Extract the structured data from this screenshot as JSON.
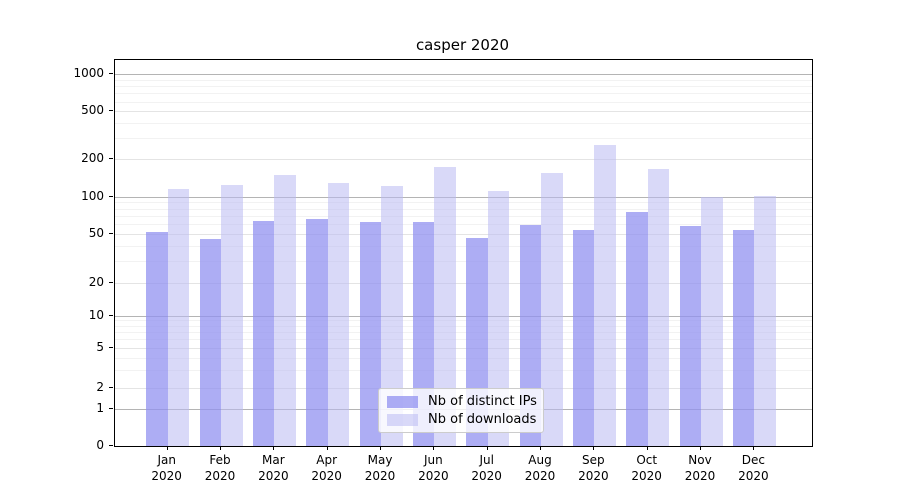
{
  "chart_data": {
    "type": "bar",
    "title": "casper 2020",
    "categories": [
      "Jan",
      "Feb",
      "Mar",
      "Apr",
      "May",
      "Jun",
      "Jul",
      "Aug",
      "Sep",
      "Oct",
      "Nov",
      "Dec"
    ],
    "year_label": "2020",
    "series": [
      {
        "name": "Nb of distinct IPs",
        "color": "rgba(145,145,240,0.75)",
        "color_hex_approx": "#a9a9f4",
        "values": [
          52,
          45,
          64,
          66,
          62,
          62,
          46,
          59,
          54,
          75,
          58,
          54
        ]
      },
      {
        "name": "Nb of downloads",
        "color": "rgba(185,185,243,0.55)",
        "color_hex_approx": "#d8d8f8",
        "values": [
          115,
          125,
          150,
          130,
          122,
          175,
          112,
          155,
          265,
          166,
          100,
          101
        ]
      }
    ],
    "yscale": "symlog",
    "ylim": [
      0,
      1300
    ],
    "y_ticks": [
      0,
      1,
      2,
      5,
      10,
      20,
      50,
      100,
      200,
      500,
      1000
    ],
    "y_tick_labels": [
      "0",
      "1",
      "2",
      "5",
      "10",
      "20",
      "50",
      "100",
      "200",
      "500",
      "1000"
    ],
    "grid": "both",
    "grid_major_color": "#b4b4b4",
    "grid_minor_color": "#f2f2f2",
    "legend_position": "lower-center",
    "legend_entries": [
      "Nb of distinct IPs",
      "Nb of downloads"
    ]
  }
}
